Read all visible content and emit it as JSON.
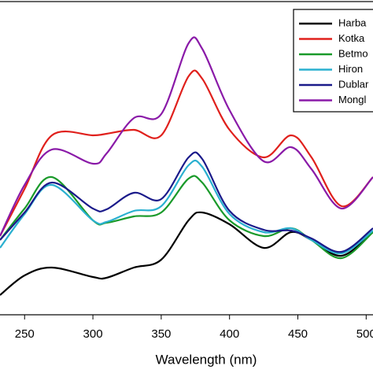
{
  "chart_data": {
    "type": "line",
    "x_label": "Wavelength (nm)",
    "x": [
      232,
      250,
      270,
      300,
      310,
      330,
      350,
      370,
      380,
      400,
      425,
      445,
      460,
      482,
      505
    ],
    "xlim": [
      232,
      505
    ],
    "xticks": [
      250,
      300,
      350,
      400,
      450,
      500
    ],
    "ylim": [
      0,
      100
    ],
    "series": [
      {
        "name": "Harba",
        "color": "#000000",
        "values": [
          6.25,
          12.5,
          15,
          12,
          11.75,
          15,
          17.5,
          30,
          32.5,
          28.75,
          21.25,
          26.25,
          23.75,
          18.75,
          26.25
        ]
      },
      {
        "name": "Kotka",
        "color": "#e0201c",
        "values": [
          25,
          40,
          57,
          57,
          57.5,
          58.75,
          57,
          75.75,
          75,
          58.75,
          50,
          57,
          50,
          34.5,
          43.75
        ]
      },
      {
        "name": "Betmo",
        "color": "#1a9a2a",
        "values": [
          23.75,
          33.75,
          43.75,
          30,
          29.25,
          31.25,
          32.5,
          43.25,
          42,
          30,
          25,
          27.5,
          23.75,
          18,
          26.25
        ]
      },
      {
        "name": "Hiron",
        "color": "#2ab0d0",
        "values": [
          21.25,
          32,
          41.25,
          30,
          29.5,
          33,
          34.5,
          47.5,
          47,
          32,
          26.25,
          27.5,
          23.75,
          19.5,
          26.75
        ]
      },
      {
        "name": "Dublar",
        "color": "#1a1a8a",
        "values": [
          23.75,
          32.5,
          42,
          33.75,
          33.5,
          38.75,
          36.75,
          50,
          49.5,
          33,
          27,
          26.75,
          24.25,
          20,
          27.5
        ]
      },
      {
        "name": "Mongl",
        "color": "#8a1aa8",
        "values": [
          25,
          41.25,
          52.5,
          48,
          51.25,
          62.5,
          63.75,
          86.25,
          84.5,
          65,
          48.75,
          53.25,
          46.25,
          33.75,
          43.75
        ]
      }
    ]
  }
}
